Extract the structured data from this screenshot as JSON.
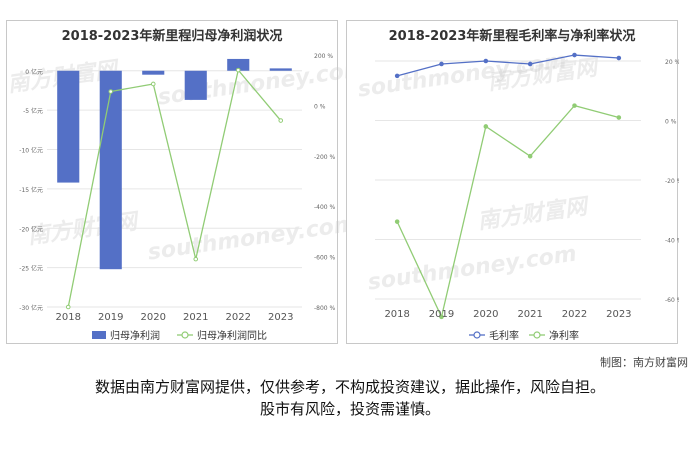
{
  "credit": "制图：南方财富网",
  "disclaimer": {
    "line1": "数据由南方财富网提供，仅供参考，不构成投资建议，据此操作，风险自担。",
    "line2": "股市有风险，投资需谨慎。"
  },
  "watermark": {
    "cn": "南方财富网",
    "en": "southmoney.com"
  },
  "chart_data": [
    {
      "type": "bar",
      "title": "2018-2023年新里程归母净利润状况",
      "categories": [
        "2018",
        "2019",
        "2020",
        "2021",
        "2022",
        "2023"
      ],
      "y_left": {
        "min": -30,
        "max": 2,
        "ticks": [
          0,
          -5,
          -10,
          -15,
          -20,
          -25,
          -30
        ],
        "unit": " 亿元"
      },
      "y_right": {
        "min": -800,
        "max": 200,
        "ticks": [
          200,
          0,
          -200,
          -400,
          -600,
          -800
        ],
        "unit": " %"
      },
      "series": [
        {
          "name": "归母净利润",
          "kind": "bar",
          "axis": "left",
          "color": "#5470c6",
          "values": [
            -14.2,
            -25.2,
            -0.5,
            -3.7,
            1.5,
            0.3
          ]
        },
        {
          "name": "归母净利润同比",
          "kind": "line",
          "axis": "right",
          "color": "#91cc75",
          "values": [
            -800,
            55,
            85,
            -610,
            140,
            -60
          ]
        }
      ],
      "legend": "bottom",
      "grid": true
    },
    {
      "type": "line",
      "title": "2018-2023年新里程毛利率与净利率状况",
      "categories": [
        "2018",
        "2019",
        "2020",
        "2021",
        "2022",
        "2023"
      ],
      "y_right": {
        "min": -60,
        "max": 20,
        "ticks": [
          20,
          0,
          -20,
          -40,
          -60
        ],
        "unit": " %"
      },
      "series": [
        {
          "name": "毛利率",
          "color": "#5470c6",
          "values": [
            15,
            19,
            20,
            19,
            22,
            21
          ]
        },
        {
          "name": "净利率",
          "color": "#91cc75",
          "values": [
            -34,
            -66,
            -2,
            -12,
            5,
            1
          ]
        }
      ],
      "legend": "bottom",
      "grid": true
    }
  ]
}
